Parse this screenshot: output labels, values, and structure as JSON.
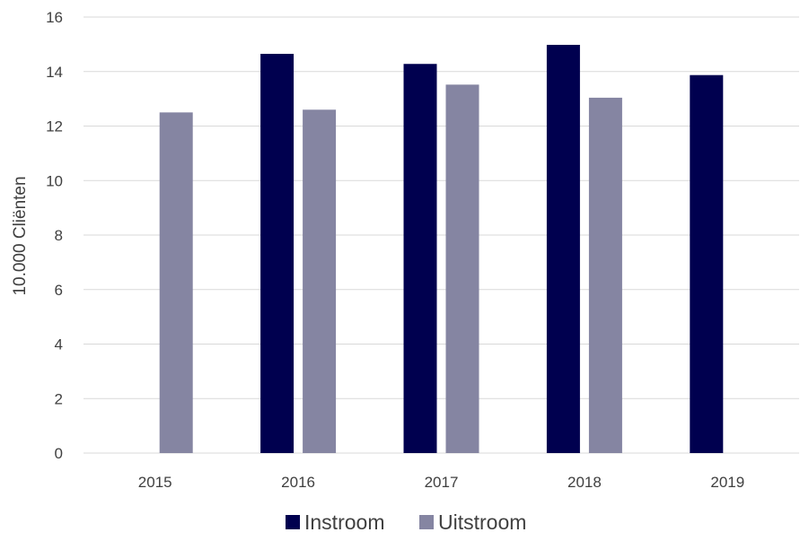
{
  "chart_data": {
    "type": "bar",
    "categories": [
      "2015",
      "2016",
      "2017",
      "2018",
      "2019"
    ],
    "series": [
      {
        "name": "Instroom",
        "values": [
          null,
          14.65,
          14.28,
          14.98,
          13.87
        ],
        "color": "#00004f"
      },
      {
        "name": "Uitstroom",
        "values": [
          12.5,
          12.6,
          13.52,
          13.04,
          null
        ],
        "color": "#8585a2"
      }
    ],
    "title": "",
    "xlabel": "",
    "ylabel": "10.000 Cliënten",
    "ylim": [
      0,
      16
    ],
    "yticks": [
      0,
      2,
      4,
      6,
      8,
      10,
      12,
      14,
      16
    ],
    "grid": true,
    "legend_position": "bottom-center"
  }
}
